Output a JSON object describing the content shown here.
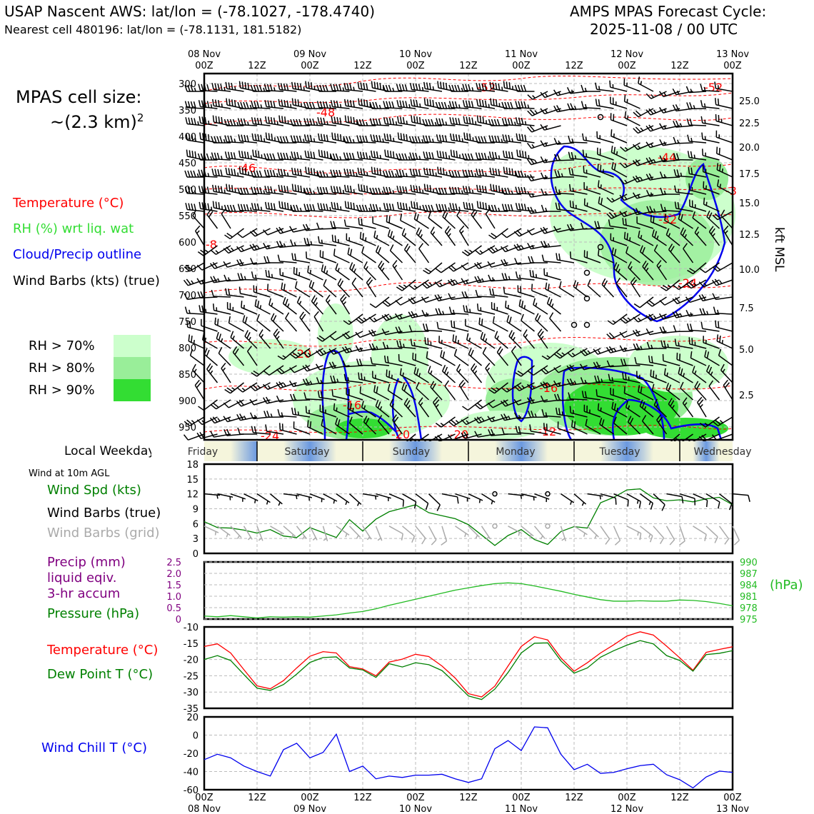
{
  "header": {
    "title": "USAP Nascent AWS: lat/lon = (-78.1027, -178.4740)",
    "subtitle": "Nearest cell 480196: lat/lon = (-78.1131, 181.5182)",
    "cycle_line1": "AMPS MPAS Forecast Cycle:",
    "cycle_line2": "2025-11-08 / 00 UTC"
  },
  "cell_size": {
    "line1": "MPAS cell size:",
    "line2": "~(2.3 km)",
    "sup": "2"
  },
  "legend": {
    "temperature": "Temperature (°C)",
    "rh": "RH (%) wrt liq. wat",
    "cloud": "Cloud/Precip outline",
    "wind_barbs": "Wind Barbs (kts) (true)",
    "rh70": "RH > 70%",
    "rh80": "RH > 80%",
    "rh90": "RH > 90%",
    "local_weekday": "Local Weekday",
    "wind_10m": "Wind at 10m AGL",
    "wind_spd": "Wind Spd (kts)",
    "wind_barbs_true": "Wind Barbs (true)",
    "wind_barbs_grid": "Wind Barbs (grid)",
    "precip_l1": "Precip (mm)",
    "precip_l2": "liquid eqiv.",
    "precip_l3": "3-hr accum",
    "pressure": "Pressure (hPa)",
    "temperature2": "Temperature (°C)",
    "dewpoint": "Dew Point T (°C)",
    "windchill": "Wind Chill T (°C)",
    "hpa_unit": "(hPa)",
    "kft_msl": "kft MSL"
  },
  "colors": {
    "temperature": "#ff0000",
    "rh": "#33dd33",
    "cloud": "#0000ee",
    "barb": "#000000",
    "barb_grid": "#aaaaaa",
    "precip": "#800080",
    "pressure": "#22bb22",
    "dewpoint": "#008000",
    "windchill": "#0000ee",
    "rh70": "#ccffcc",
    "rh80": "#99ee99",
    "rh90": "#33dd33"
  },
  "time_axis": {
    "top_dates": [
      "08 Nov",
      "09 Nov",
      "10 Nov",
      "11 Nov",
      "12 Nov",
      "13 Nov"
    ],
    "top_hours": [
      "00Z",
      "12Z",
      "00Z",
      "12Z",
      "00Z",
      "12Z",
      "00Z",
      "12Z",
      "00Z",
      "12Z",
      "00Z"
    ],
    "bottom_hours": [
      "00Z",
      "12Z",
      "00Z",
      "12Z",
      "00Z",
      "12Z",
      "00Z",
      "12Z",
      "00Z",
      "12Z",
      "00Z"
    ],
    "bottom_dates": [
      "08 Nov",
      "09 Nov",
      "10 Nov",
      "11 Nov",
      "12 Nov",
      "13 Nov"
    ]
  },
  "weekdays": [
    "Friday",
    "Saturday",
    "Sunday",
    "Monday",
    "Tuesday",
    "Wednesday"
  ],
  "chart_data": [
    {
      "type": "heatmap",
      "pressure_levels": [
        "300",
        "350",
        "400",
        "450",
        "500",
        "550",
        "600",
        "650",
        "700",
        "750",
        "800",
        "850",
        "900",
        "950"
      ],
      "height_levels_kft": [
        "25.0",
        "22.5",
        "20.0",
        "17.5",
        "15.0",
        "12.5",
        "10.0",
        "7.5",
        "5.0",
        "2.5"
      ],
      "temperature_contour_labels": [
        "-52",
        "-52",
        "-48",
        "-46",
        "-44",
        "-32",
        "-24",
        "-20",
        "-16",
        "-16",
        "-12",
        "-20",
        "-20",
        "-24",
        "-8",
        "-3"
      ]
    },
    {
      "type": "line",
      "name_ref": "wind_10m",
      "y_ticks": [
        "0",
        "3",
        "6",
        "9",
        "12",
        "15",
        "18"
      ],
      "ylim": [
        0,
        18
      ],
      "x_hours": [
        0,
        3,
        6,
        9,
        12,
        15,
        18,
        21,
        24,
        27,
        30,
        33,
        36,
        39,
        42,
        45,
        48,
        51,
        54,
        57,
        60,
        63,
        66,
        69,
        72,
        75,
        78,
        81,
        84,
        87,
        90,
        93,
        96,
        99,
        102,
        105,
        108,
        111,
        114,
        117,
        120
      ],
      "wind_speed": [
        6.4,
        5.2,
        5.1,
        4.7,
        4.1,
        4.8,
        3.5,
        3.2,
        5.2,
        4.2,
        3.2,
        6.8,
        4.5,
        6.9,
        8.4,
        9.1,
        9.8,
        8.2,
        7.6,
        7.0,
        5.8,
        3.7,
        1.6,
        3.6,
        4.8,
        2.8,
        1.8,
        4.4,
        5.4,
        5.1,
        10.2,
        11.3,
        12.8,
        13.0,
        11.2,
        10.6,
        10.8,
        10.4,
        11.0,
        11.3,
        9.8
      ]
    },
    {
      "type": "line",
      "name_ref": "pressure",
      "y_ticks_left": [
        "0",
        "0.5",
        "1.0",
        "1.5",
        "2.0",
        "2.5"
      ],
      "y_ticks_right": [
        "990",
        "987",
        "984",
        "981",
        "978",
        "975"
      ],
      "ylim": [
        975,
        990
      ],
      "x_hours": [
        0,
        3,
        6,
        9,
        12,
        15,
        18,
        21,
        24,
        27,
        30,
        33,
        36,
        39,
        42,
        45,
        48,
        51,
        54,
        57,
        60,
        63,
        66,
        69,
        72,
        75,
        78,
        81,
        84,
        87,
        90,
        93,
        96,
        99,
        102,
        105,
        108,
        111,
        114,
        117,
        120
      ],
      "pressure": [
        975.8,
        975.6,
        975.9,
        975.6,
        975.3,
        975.6,
        975.5,
        975.6,
        975.5,
        975.8,
        976.1,
        976.6,
        977.0,
        977.7,
        978.6,
        979.4,
        980.2,
        981.0,
        981.8,
        982.6,
        983.2,
        983.8,
        984.3,
        984.5,
        984.3,
        983.7,
        983.0,
        982.3,
        981.5,
        980.8,
        980.1,
        979.7,
        979.7,
        979.8,
        979.7,
        979.7,
        980.0,
        979.9,
        979.6,
        979.1,
        978.5
      ],
      "precip": []
    },
    {
      "type": "line",
      "name_ref": "temperature_dewpoint",
      "y_ticks": [
        "-10",
        "-15",
        "-20",
        "-25",
        "-30",
        "-35"
      ],
      "ylim": [
        -35,
        -10
      ],
      "x_hours": [
        0,
        3,
        6,
        9,
        12,
        15,
        18,
        21,
        24,
        27,
        30,
        33,
        36,
        39,
        42,
        45,
        48,
        51,
        54,
        57,
        60,
        63,
        66,
        69,
        72,
        75,
        78,
        81,
        84,
        87,
        90,
        93,
        96,
        99,
        102,
        105,
        108,
        111,
        114,
        117,
        120
      ],
      "temperature": [
        -16.0,
        -15.2,
        -18.0,
        -23.1,
        -28.1,
        -29.0,
        -26.5,
        -22.6,
        -19.0,
        -17.6,
        -18.0,
        -22.2,
        -22.9,
        -25.0,
        -20.8,
        -19.9,
        -18.4,
        -19.1,
        -22.0,
        -25.7,
        -30.5,
        -31.5,
        -28.2,
        -22.0,
        -16.0,
        -13.0,
        -14.0,
        -19.5,
        -23.6,
        -21.0,
        -18.0,
        -15.5,
        -12.8,
        -11.5,
        -12.5,
        -15.9,
        -19.5,
        -23.3,
        -17.8,
        -16.9,
        -16.1
      ],
      "dewpoint": [
        -20.0,
        -18.8,
        -20.3,
        -24.6,
        -28.8,
        -29.5,
        -27.7,
        -24.5,
        -20.9,
        -19.4,
        -19.2,
        -22.6,
        -23.2,
        -25.5,
        -21.3,
        -22.3,
        -21.0,
        -21.6,
        -23.4,
        -27.2,
        -31.2,
        -32.3,
        -29.1,
        -24.0,
        -18.0,
        -15.0,
        -14.9,
        -20.4,
        -24.2,
        -22.6,
        -19.3,
        -17.3,
        -15.6,
        -14.2,
        -15.2,
        -18.8,
        -20.3,
        -23.6,
        -18.5,
        -18.1,
        -17.3
      ]
    },
    {
      "type": "line",
      "name_ref": "windchill",
      "y_ticks": [
        "20",
        "0",
        "-20",
        "-40",
        "-60"
      ],
      "ylim": [
        -60,
        20
      ],
      "x_hours": [
        0,
        3,
        6,
        9,
        12,
        15,
        18,
        21,
        24,
        27,
        30,
        33,
        36,
        39,
        42,
        45,
        48,
        51,
        54,
        57,
        60,
        63,
        66,
        69,
        72,
        75,
        78,
        81,
        84,
        87,
        90,
        93,
        96,
        99,
        102,
        105,
        108,
        111,
        114,
        117,
        120
      ],
      "windchill": [
        -27.0,
        -21.0,
        -25.0,
        -34.0,
        -40.0,
        -45.0,
        -16.0,
        -9.0,
        -25.0,
        -19.0,
        1.0,
        -40.0,
        -34.0,
        -48.0,
        -45.0,
        -46.5,
        -44.0,
        -44.0,
        -43.0,
        -48.0,
        -52.0,
        -48.0,
        -15.0,
        -6.0,
        -17.0,
        9.0,
        8.0,
        -21.0,
        -38.0,
        -32.0,
        -42.0,
        -41.0,
        -37.0,
        -33.5,
        -32.0,
        -43.5,
        -49.0,
        -58.0,
        -46.0,
        -39.5,
        -41.0
      ]
    }
  ]
}
